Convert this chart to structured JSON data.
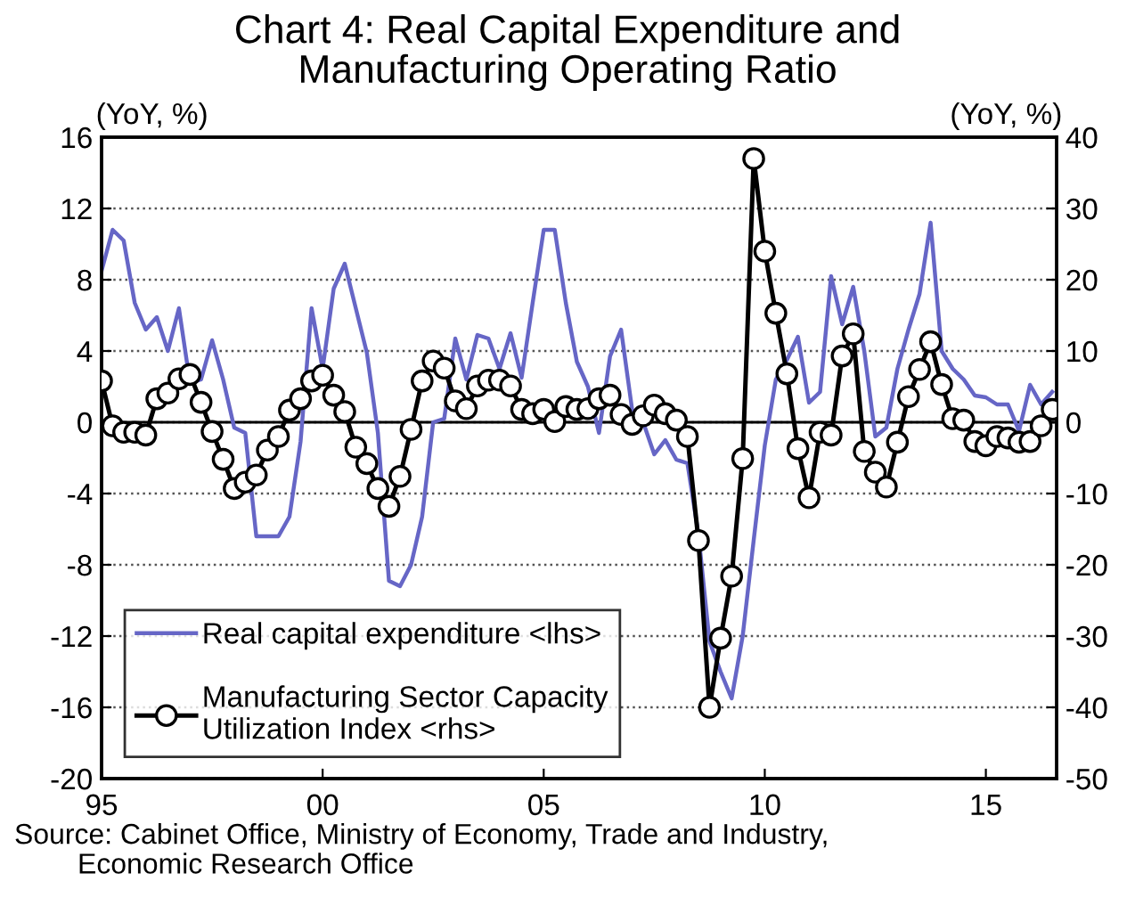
{
  "chart_data": {
    "type": "line",
    "title": "Chart 4: Real Capital Expenditure and\nManufacturing Operating Ratio",
    "ylabel": "(YoY, %)",
    "y2label": "(YoY, %)",
    "annotations": [
      "Source: Cabinet Office, Ministry of Economy, Trade and Industry,\n        Economic Research Office"
    ],
    "x": [
      1995.0,
      1995.25,
      1995.5,
      1995.75,
      1996.0,
      1996.25,
      1996.5,
      1996.75,
      1997.0,
      1997.25,
      1997.5,
      1997.75,
      1998.0,
      1998.25,
      1998.5,
      1998.75,
      1999.0,
      1999.25,
      1999.5,
      1999.75,
      2000.0,
      2000.25,
      2000.5,
      2000.75,
      2001.0,
      2001.25,
      2001.5,
      2001.75,
      2002.0,
      2002.25,
      2002.5,
      2002.75,
      2003.0,
      2003.25,
      2003.5,
      2003.75,
      2004.0,
      2004.25,
      2004.5,
      2004.75,
      2005.0,
      2005.25,
      2005.5,
      2005.75,
      2006.0,
      2006.25,
      2006.5,
      2006.75,
      2007.0,
      2007.25,
      2007.5,
      2007.75,
      2008.0,
      2008.25,
      2008.5,
      2008.75,
      2009.0,
      2009.25,
      2009.5,
      2009.75,
      2010.0,
      2010.25,
      2010.5,
      2010.75,
      2011.0,
      2011.25,
      2011.5,
      2011.75,
      2012.0,
      2012.25,
      2012.5,
      2012.75,
      2013.0,
      2013.25,
      2013.5,
      2013.75,
      2014.0,
      2014.25,
      2014.5,
      2014.75,
      2015.0,
      2015.25,
      2015.5,
      2015.75,
      2016.0,
      2016.25,
      2016.5
    ],
    "series": [
      {
        "name": "Real capital expenditure <lhs>",
        "color": "#6666c6",
        "marker": "none",
        "values": [
          8.5,
          10.8,
          10.2,
          6.7,
          5.2,
          5.9,
          4,
          6.4,
          2.2,
          2.4,
          4.6,
          2.4,
          -0.3,
          -0.6,
          -6.4,
          -6.4,
          -6.4,
          -5.3,
          -1.1,
          6.4,
          3,
          7.5,
          8.9,
          6.4,
          3.9,
          -0.6,
          -8.9,
          -9.2,
          -8,
          -5.3,
          0,
          0.2,
          4.7,
          2.4,
          4.9,
          4.7,
          3,
          5,
          2.5,
          6.7,
          10.8,
          10.8,
          6.7,
          3.4,
          2,
          -0.6,
          3.7,
          5.2,
          0.7,
          0,
          -1.8,
          -1,
          -2.1,
          -2.3,
          -6.3,
          -12.3,
          -14,
          -15.5,
          -12,
          -6.6,
          -1.3,
          2.4,
          3.5,
          4.8,
          1.1,
          1.7,
          8.2,
          5.5,
          7.6,
          4,
          -0.8,
          -0.3,
          3,
          5.2,
          7.2,
          11.2,
          4,
          3,
          2.4,
          1.5,
          1.4,
          1,
          1,
          -0.5,
          2.1,
          1,
          1.7
        ]
      },
      {
        "name": "Manufacturing Sector Capacity\nUtilization Index <rhs>",
        "color": "#000000",
        "marker": "circle",
        "axis": "y2",
        "values": [
          5.8,
          -0.5,
          -1.4,
          -1.4,
          -1.8,
          3.3,
          4.1,
          6.1,
          6.7,
          2.8,
          -1.3,
          -5.2,
          -9.3,
          -8.4,
          -7.4,
          -3.9,
          -2,
          1.7,
          3.3,
          5.8,
          6.6,
          3.8,
          1.5,
          -3.5,
          -5.8,
          -9.3,
          -11.8,
          -7.6,
          -1,
          5.8,
          8.6,
          7.6,
          3,
          1.9,
          5.1,
          5.9,
          5.9,
          5.1,
          1.8,
          1.2,
          1.8,
          0.1,
          2.2,
          1.8,
          1.9,
          3.3,
          3.8,
          1.1,
          -0.3,
          0.9,
          2.4,
          1.2,
          0.3,
          -2,
          -16.6,
          -40,
          -30.3,
          -21.6,
          -5.1,
          37,
          24,
          15.3,
          6.8,
          -3.7,
          -10.6,
          -1.4,
          -1.8,
          9.3,
          12.4,
          -4.1,
          -7,
          -9.1,
          -2.8,
          3.6,
          7.4,
          11.3,
          5.3,
          0.5,
          0.3,
          -2.7,
          -3.3,
          -2,
          -2.2,
          -2.8,
          -2.7,
          -0.5,
          1.8
        ]
      }
    ],
    "xlim": [
      1995,
      2016.6
    ],
    "xticks": [
      {
        "value": 1995,
        "label": "95"
      },
      {
        "value": 2000,
        "label": "00"
      },
      {
        "value": 2005,
        "label": "05"
      },
      {
        "value": 2010,
        "label": "10"
      },
      {
        "value": 2015,
        "label": "15"
      }
    ],
    "ylim": [
      -20,
      16
    ],
    "yticks": [
      -20,
      -16,
      -12,
      -8,
      -4,
      0,
      4,
      8,
      12,
      16
    ],
    "y2lim": [
      -50,
      40
    ],
    "y2ticks": [
      -50,
      -40,
      -30,
      -20,
      -10,
      0,
      10,
      20,
      30,
      40
    ],
    "ref_lines": [
      {
        "axis": "y",
        "value": 0,
        "color": "#000000"
      }
    ],
    "grid": "y",
    "legend": "bottom left",
    "line_style": "solid"
  }
}
